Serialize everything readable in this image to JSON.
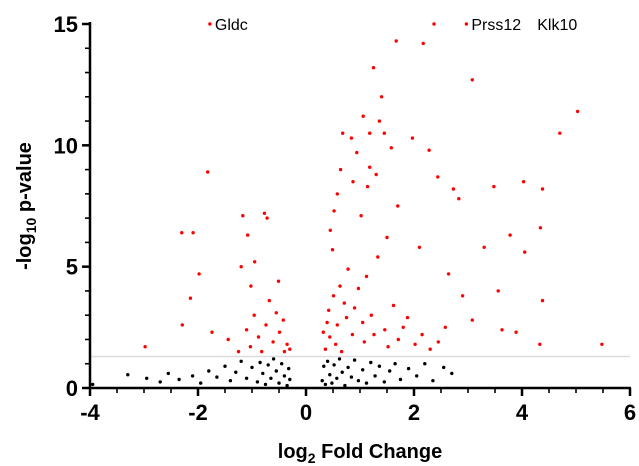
{
  "chart_data": {
    "type": "scatter",
    "title": "",
    "xlabel": {
      "prefix": "log",
      "sub": "2",
      "suffix": " Fold Change"
    },
    "ylabel": {
      "prefix": "-log",
      "sub": "10",
      "suffix": " p-value"
    },
    "xlim": [
      -4,
      6
    ],
    "ylim": [
      0,
      15
    ],
    "x_ticks": [
      -4,
      -2,
      0,
      2,
      4,
      6
    ],
    "x_tick_labels": [
      "-4",
      "-2",
      "0",
      "2",
      "4",
      "6"
    ],
    "y_ticks": [
      0,
      5,
      10,
      15
    ],
    "y_tick_labels": [
      "0",
      "5",
      "10",
      "15"
    ],
    "threshold_y": 1.3,
    "grid": false,
    "colors": {
      "significant": "#ff0000",
      "not_significant": "#000000",
      "threshold_line": "#dddddd",
      "axis": "#000000"
    },
    "series": [
      {
        "role": "significant",
        "color": "#ff0000",
        "points": [
          [
            -1.78,
            15.0
          ],
          [
            2.37,
            15.0
          ],
          [
            2.97,
            15.0
          ],
          [
            2.17,
            14.2
          ],
          [
            1.67,
            14.3
          ],
          [
            1.25,
            13.2
          ],
          [
            3.08,
            12.7
          ],
          [
            1.4,
            12.0
          ],
          [
            5.03,
            11.4
          ],
          [
            1.06,
            11.2
          ],
          [
            1.36,
            11.0
          ],
          [
            4.7,
            10.5
          ],
          [
            0.68,
            10.5
          ],
          [
            1.18,
            10.5
          ],
          [
            0.84,
            10.3
          ],
          [
            1.97,
            10.3
          ],
          [
            1.45,
            10.5
          ],
          [
            1.58,
            9.9
          ],
          [
            2.28,
            9.8
          ],
          [
            0.94,
            9.7
          ],
          [
            1.18,
            9.1
          ],
          [
            0.64,
            9.0
          ],
          [
            -1.82,
            8.9
          ],
          [
            1.3,
            8.8
          ],
          [
            2.44,
            8.7
          ],
          [
            0.87,
            8.5
          ],
          [
            3.48,
            8.3
          ],
          [
            4.03,
            8.5
          ],
          [
            4.38,
            8.2
          ],
          [
            2.73,
            8.2
          ],
          [
            1.14,
            8.3
          ],
          [
            0.58,
            8.0
          ],
          [
            2.83,
            7.8
          ],
          [
            1.7,
            7.5
          ],
          [
            0.52,
            7.3
          ],
          [
            -1.17,
            7.1
          ],
          [
            -0.77,
            7.2
          ],
          [
            -0.72,
            7.0
          ],
          [
            1.02,
            7.1
          ],
          [
            -2.3,
            6.4
          ],
          [
            -2.09,
            6.4
          ],
          [
            4.34,
            6.6
          ],
          [
            -1.08,
            6.3
          ],
          [
            0.45,
            6.5
          ],
          [
            3.78,
            6.3
          ],
          [
            1.5,
            6.2
          ],
          [
            3.3,
            5.8
          ],
          [
            2.1,
            5.8
          ],
          [
            4.05,
            5.6
          ],
          [
            -0.95,
            5.2
          ],
          [
            -1.2,
            5.0
          ],
          [
            -1.98,
            4.7
          ],
          [
            2.64,
            4.7
          ],
          [
            1.12,
            4.6
          ],
          [
            -0.51,
            4.4
          ],
          [
            3.56,
            4.0
          ],
          [
            -2.14,
            3.7
          ],
          [
            2.9,
            3.8
          ],
          [
            4.38,
            3.6
          ],
          [
            -1.02,
            4.2
          ],
          [
            3.08,
            2.8
          ],
          [
            3.63,
            2.4
          ],
          [
            3.89,
            2.3
          ],
          [
            4.33,
            1.8
          ],
          [
            5.48,
            1.8
          ],
          [
            -2.98,
            1.7
          ],
          [
            -2.29,
            2.6
          ],
          [
            -1.74,
            2.3
          ],
          [
            2.58,
            2.5
          ],
          [
            0.97,
            4.1
          ],
          [
            1.62,
            3.4
          ],
          [
            1.88,
            2.9
          ],
          [
            -0.42,
            2.8
          ],
          [
            0.49,
            5.7
          ],
          [
            0.78,
            4.9
          ],
          [
            1.33,
            5.4
          ],
          [
            0.42,
            3.2
          ],
          [
            0.58,
            2.6
          ],
          [
            0.71,
            3.5
          ],
          [
            0.86,
            2.2
          ],
          [
            1.05,
            2.7
          ],
          [
            1.21,
            3.0
          ],
          [
            1.46,
            2.4
          ],
          [
            1.71,
            2.0
          ],
          [
            2.02,
            1.8
          ],
          [
            2.3,
            1.6
          ],
          [
            0.36,
            1.6
          ],
          [
            0.44,
            2.1
          ],
          [
            0.55,
            1.8
          ],
          [
            0.66,
            1.5
          ],
          [
            -0.35,
            1.8
          ],
          [
            -0.49,
            2.3
          ],
          [
            -0.61,
            1.9
          ],
          [
            -0.74,
            2.6
          ],
          [
            -0.88,
            2.1
          ],
          [
            -1.03,
            1.7
          ],
          [
            -1.25,
            1.5
          ],
          [
            -1.44,
            2.0
          ],
          [
            -0.55,
            3.1
          ],
          [
            -0.68,
            3.6
          ],
          [
            -0.82,
            1.5
          ],
          [
            -0.96,
            3.0
          ],
          [
            -1.1,
            2.4
          ],
          [
            -0.4,
            1.5
          ],
          [
            -0.3,
            1.6
          ],
          [
            0.32,
            2.3
          ],
          [
            0.39,
            2.7
          ],
          [
            0.51,
            3.8
          ],
          [
            0.63,
            4.2
          ],
          [
            0.75,
            2.9
          ],
          [
            0.9,
            3.3
          ],
          [
            1.08,
            1.9
          ],
          [
            1.26,
            2.2
          ],
          [
            1.52,
            1.7
          ],
          [
            1.8,
            2.5
          ],
          [
            2.15,
            2.2
          ],
          [
            2.45,
            1.9
          ]
        ]
      },
      {
        "role": "not_significant",
        "color": "#000000",
        "points": [
          [
            -3.95,
            0.15
          ],
          [
            -3.3,
            0.55
          ],
          [
            -2.95,
            0.4
          ],
          [
            -2.7,
            0.25
          ],
          [
            -2.55,
            0.6
          ],
          [
            -2.35,
            0.35
          ],
          [
            -2.1,
            0.5
          ],
          [
            -1.95,
            0.2
          ],
          [
            -1.8,
            0.7
          ],
          [
            -1.65,
            0.45
          ],
          [
            -1.5,
            0.9
          ],
          [
            -1.4,
            0.3
          ],
          [
            -1.3,
            0.65
          ],
          [
            -1.2,
            1.1
          ],
          [
            -1.1,
            0.4
          ],
          [
            -1.0,
            0.85
          ],
          [
            -0.9,
            0.25
          ],
          [
            -0.85,
            1.05
          ],
          [
            -0.8,
            0.6
          ],
          [
            -0.75,
            0.15
          ],
          [
            -0.7,
            0.95
          ],
          [
            -0.65,
            0.4
          ],
          [
            -0.6,
            1.2
          ],
          [
            -0.55,
            0.7
          ],
          [
            -0.5,
            0.2
          ],
          [
            -0.45,
            1.0
          ],
          [
            -0.4,
            0.5
          ],
          [
            -0.35,
            0.1
          ],
          [
            -0.32,
            0.8
          ],
          [
            -0.3,
            0.35
          ],
          [
            0.3,
            0.3
          ],
          [
            0.33,
            0.9
          ],
          [
            0.36,
            0.15
          ],
          [
            0.4,
            1.1
          ],
          [
            0.44,
            0.55
          ],
          [
            0.48,
            0.2
          ],
          [
            0.52,
            0.95
          ],
          [
            0.57,
            0.4
          ],
          [
            0.62,
            1.2
          ],
          [
            0.67,
            0.65
          ],
          [
            0.72,
            0.1
          ],
          [
            0.78,
            0.85
          ],
          [
            0.84,
            0.45
          ],
          [
            0.9,
            1.15
          ],
          [
            0.97,
            0.3
          ],
          [
            1.05,
            0.75
          ],
          [
            1.12,
            0.2
          ],
          [
            1.2,
            1.05
          ],
          [
            1.28,
            0.5
          ],
          [
            1.36,
            0.9
          ],
          [
            1.45,
            0.25
          ],
          [
            1.55,
            0.7
          ],
          [
            1.65,
            1.0
          ],
          [
            1.75,
            0.35
          ],
          [
            1.9,
            0.8
          ],
          [
            2.05,
            0.5
          ],
          [
            2.2,
            1.0
          ],
          [
            2.35,
            0.3
          ],
          [
            2.55,
            0.85
          ],
          [
            2.7,
            0.6
          ]
        ]
      }
    ],
    "annotations": [
      {
        "label": "Gldc",
        "x": -1.78,
        "y": 15.0
      },
      {
        "label": "Prss12",
        "x": 2.97,
        "y": 15.0
      },
      {
        "label": "Klk10",
        "x": 4.19,
        "y": 15.0
      }
    ]
  }
}
